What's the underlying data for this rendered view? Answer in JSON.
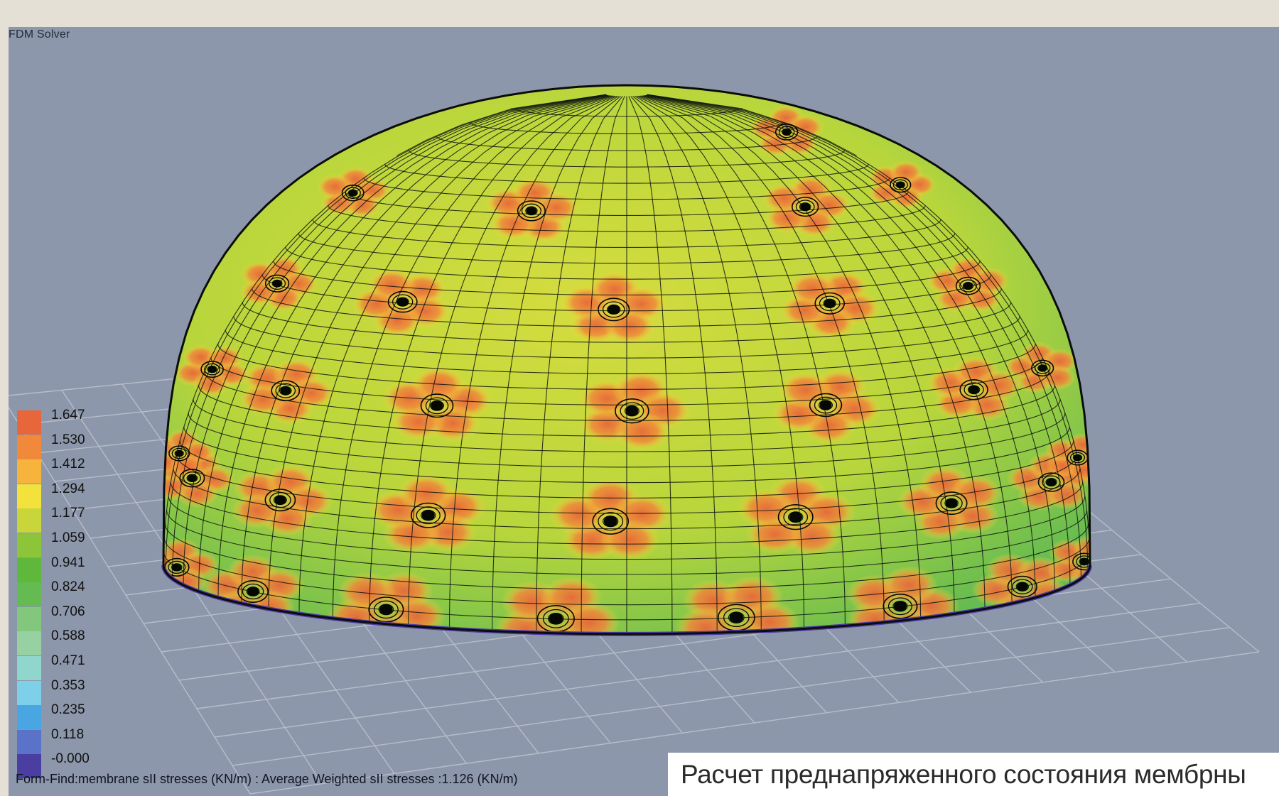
{
  "window": {
    "title": "FDM Solver"
  },
  "legend": {
    "items": [
      {
        "label": "1.647",
        "color": "#e8673a"
      },
      {
        "label": "1.530",
        "color": "#f08a3a"
      },
      {
        "label": "1.412",
        "color": "#f6b43c"
      },
      {
        "label": "1.294",
        "color": "#f4e23c"
      },
      {
        "label": "1.177",
        "color": "#c9d63a"
      },
      {
        "label": "1.059",
        "color": "#8cc43a"
      },
      {
        "label": "0.941",
        "color": "#5fb73c"
      },
      {
        "label": "0.824",
        "color": "#63bb52"
      },
      {
        "label": "0.706",
        "color": "#82c77c"
      },
      {
        "label": "0.588",
        "color": "#98d1a1"
      },
      {
        "label": "0.471",
        "color": "#91d6cc"
      },
      {
        "label": "0.353",
        "color": "#7dd0e8"
      },
      {
        "label": "0.235",
        "color": "#4aa6e2"
      },
      {
        "label": "0.118",
        "color": "#5a72c8"
      },
      {
        "label": "-0.000",
        "color": "#4a3fa0"
      }
    ]
  },
  "status": {
    "text": "Form-Find:membrane sII stresses (KN/m) : Average Weighted sII stresses :1.126 (KN/m)"
  },
  "caption": {
    "text": "Расчет преднапряженного состояния мембрны"
  },
  "colors": {
    "background": "#8d97ab",
    "frame": "#e4e0d6",
    "grid": "#b7bdca",
    "mesh": "#101810",
    "node": "#050805",
    "rim": "#4b3aa5",
    "stress_high": "#e8673a",
    "stress_mid": "#f4e23c",
    "stress_low": "#5fb73c"
  }
}
